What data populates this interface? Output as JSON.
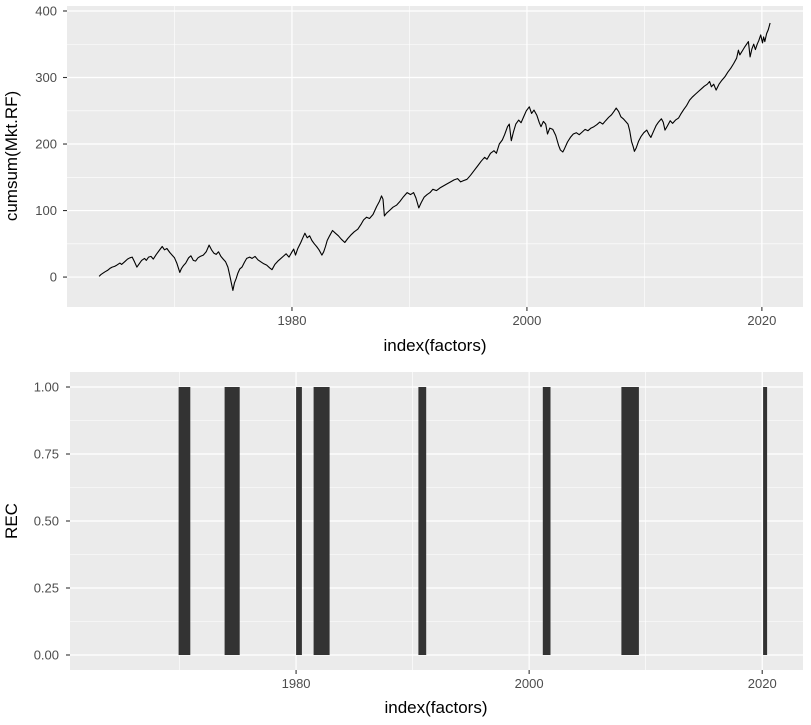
{
  "theme": {
    "figure_bg": "#FFFFFF",
    "panel_bg": "#EBEBEB",
    "grid_color": "#FFFFFF",
    "tick_mark_color": "#333333",
    "tick_label_color": "#4D4D4D",
    "axis_title_color": "#000000",
    "line_color": "#000000",
    "bar_color": "#333333"
  },
  "chart_data": [
    {
      "type": "line",
      "title": "",
      "xlabel": "index(factors)",
      "ylabel": "cumsum(Mkt.RF)",
      "x_ticks": [
        1980,
        2000,
        2020
      ],
      "x_tick_labels": [
        "1980",
        "2000",
        "2020"
      ],
      "x_minor": [
        1970,
        1990,
        2010
      ],
      "y_ticks": [
        0,
        100,
        200,
        300,
        400
      ],
      "y_tick_labels": [
        "0",
        "100",
        "200",
        "300",
        "400"
      ],
      "y_minor": [
        50,
        150,
        250,
        350
      ],
      "xlim": [
        1960.85,
        2023.5
      ],
      "ylim": [
        -45,
        407.5
      ],
      "grid": true,
      "legend": "none",
      "points": [
        [
          1963.58,
          1
        ],
        [
          1963.75,
          4
        ],
        [
          1963.92,
          6
        ],
        [
          1964.1,
          8
        ],
        [
          1964.3,
          10
        ],
        [
          1964.5,
          13
        ],
        [
          1964.7,
          15
        ],
        [
          1964.9,
          16
        ],
        [
          1965.1,
          18
        ],
        [
          1965.35,
          21
        ],
        [
          1965.5,
          19
        ],
        [
          1965.75,
          23
        ],
        [
          1966.0,
          27
        ],
        [
          1966.2,
          29
        ],
        [
          1966.4,
          30
        ],
        [
          1966.6,
          23
        ],
        [
          1966.8,
          15
        ],
        [
          1967.0,
          20
        ],
        [
          1967.2,
          25
        ],
        [
          1967.45,
          28
        ],
        [
          1967.6,
          25
        ],
        [
          1967.8,
          30
        ],
        [
          1968.0,
          31
        ],
        [
          1968.2,
          27
        ],
        [
          1968.45,
          34
        ],
        [
          1968.7,
          40
        ],
        [
          1968.95,
          46
        ],
        [
          1969.15,
          41
        ],
        [
          1969.35,
          43
        ],
        [
          1969.6,
          37
        ],
        [
          1969.8,
          33
        ],
        [
          1970.0,
          29
        ],
        [
          1970.2,
          21
        ],
        [
          1970.45,
          7
        ],
        [
          1970.6,
          13
        ],
        [
          1970.75,
          17
        ],
        [
          1970.95,
          21
        ],
        [
          1971.2,
          29
        ],
        [
          1971.4,
          32
        ],
        [
          1971.6,
          25
        ],
        [
          1971.8,
          24
        ],
        [
          1972.0,
          29
        ],
        [
          1972.2,
          31
        ],
        [
          1972.45,
          33
        ],
        [
          1972.7,
          38
        ],
        [
          1972.95,
          48
        ],
        [
          1973.15,
          41
        ],
        [
          1973.35,
          36
        ],
        [
          1973.55,
          34
        ],
        [
          1973.75,
          38
        ],
        [
          1973.95,
          31
        ],
        [
          1974.15,
          27
        ],
        [
          1974.35,
          23
        ],
        [
          1974.55,
          15
        ],
        [
          1974.7,
          3
        ],
        [
          1974.85,
          -10
        ],
        [
          1974.97,
          -20
        ],
        [
          1975.1,
          -9
        ],
        [
          1975.25,
          -2
        ],
        [
          1975.4,
          6
        ],
        [
          1975.55,
          12
        ],
        [
          1975.75,
          15
        ],
        [
          1975.95,
          22
        ],
        [
          1976.15,
          28
        ],
        [
          1976.4,
          30
        ],
        [
          1976.6,
          28
        ],
        [
          1976.85,
          31
        ],
        [
          1977.1,
          26
        ],
        [
          1977.35,
          23
        ],
        [
          1977.6,
          20
        ],
        [
          1977.85,
          18
        ],
        [
          1978.1,
          14
        ],
        [
          1978.3,
          11
        ],
        [
          1978.55,
          19
        ],
        [
          1978.8,
          24
        ],
        [
          1979.0,
          27
        ],
        [
          1979.25,
          31
        ],
        [
          1979.5,
          35
        ],
        [
          1979.75,
          30
        ],
        [
          1980.0,
          38
        ],
        [
          1980.15,
          42
        ],
        [
          1980.3,
          33
        ],
        [
          1980.5,
          43
        ],
        [
          1980.75,
          52
        ],
        [
          1980.95,
          60
        ],
        [
          1981.1,
          66
        ],
        [
          1981.3,
          59
        ],
        [
          1981.5,
          62
        ],
        [
          1981.7,
          55
        ],
        [
          1981.9,
          50
        ],
        [
          1982.1,
          46
        ],
        [
          1982.3,
          41
        ],
        [
          1982.55,
          33
        ],
        [
          1982.7,
          38
        ],
        [
          1982.85,
          46
        ],
        [
          1983.0,
          55
        ],
        [
          1983.2,
          62
        ],
        [
          1983.45,
          70
        ],
        [
          1983.7,
          66
        ],
        [
          1983.95,
          62
        ],
        [
          1984.2,
          57
        ],
        [
          1984.5,
          52
        ],
        [
          1984.75,
          58
        ],
        [
          1985.0,
          63
        ],
        [
          1985.3,
          68
        ],
        [
          1985.6,
          72
        ],
        [
          1985.9,
          80
        ],
        [
          1986.1,
          86
        ],
        [
          1986.35,
          90
        ],
        [
          1986.6,
          88
        ],
        [
          1986.9,
          94
        ],
        [
          1987.2,
          106
        ],
        [
          1987.45,
          114
        ],
        [
          1987.62,
          122
        ],
        [
          1987.75,
          117
        ],
        [
          1987.87,
          92
        ],
        [
          1988.05,
          96
        ],
        [
          1988.3,
          100
        ],
        [
          1988.6,
          105
        ],
        [
          1988.9,
          108
        ],
        [
          1989.2,
          114
        ],
        [
          1989.5,
          121
        ],
        [
          1989.8,
          127
        ],
        [
          1990.1,
          124
        ],
        [
          1990.35,
          127
        ],
        [
          1990.55,
          119
        ],
        [
          1990.8,
          104
        ],
        [
          1991.0,
          112
        ],
        [
          1991.25,
          120
        ],
        [
          1991.5,
          124
        ],
        [
          1991.75,
          127
        ],
        [
          1992.0,
          132
        ],
        [
          1992.3,
          130
        ],
        [
          1992.6,
          134
        ],
        [
          1992.9,
          137
        ],
        [
          1993.2,
          140
        ],
        [
          1993.5,
          143
        ],
        [
          1993.8,
          146
        ],
        [
          1994.1,
          148
        ],
        [
          1994.35,
          143
        ],
        [
          1994.6,
          145
        ],
        [
          1994.9,
          147
        ],
        [
          1995.2,
          153
        ],
        [
          1995.5,
          160
        ],
        [
          1995.8,
          167
        ],
        [
          1996.1,
          174
        ],
        [
          1996.4,
          180
        ],
        [
          1996.6,
          177
        ],
        [
          1996.9,
          186
        ],
        [
          1997.2,
          190
        ],
        [
          1997.4,
          186
        ],
        [
          1997.65,
          200
        ],
        [
          1997.9,
          206
        ],
        [
          1998.1,
          214
        ],
        [
          1998.35,
          226
        ],
        [
          1998.5,
          230
        ],
        [
          1998.67,
          205
        ],
        [
          1998.85,
          218
        ],
        [
          1999.05,
          230
        ],
        [
          1999.3,
          236
        ],
        [
          1999.5,
          232
        ],
        [
          1999.7,
          240
        ],
        [
          1999.95,
          250
        ],
        [
          2000.2,
          256
        ],
        [
          2000.4,
          246
        ],
        [
          2000.6,
          251
        ],
        [
          2000.85,
          243
        ],
        [
          2001.05,
          232
        ],
        [
          2001.2,
          226
        ],
        [
          2001.4,
          234
        ],
        [
          2001.6,
          230
        ],
        [
          2001.75,
          215
        ],
        [
          2001.95,
          224
        ],
        [
          2002.2,
          222
        ],
        [
          2002.45,
          213
        ],
        [
          2002.7,
          198
        ],
        [
          2002.85,
          191
        ],
        [
          2003.05,
          188
        ],
        [
          2003.2,
          193
        ],
        [
          2003.45,
          203
        ],
        [
          2003.7,
          210
        ],
        [
          2003.95,
          215
        ],
        [
          2004.2,
          217
        ],
        [
          2004.45,
          214
        ],
        [
          2004.7,
          218
        ],
        [
          2004.95,
          222
        ],
        [
          2005.2,
          220
        ],
        [
          2005.45,
          224
        ],
        [
          2005.7,
          226
        ],
        [
          2005.95,
          229
        ],
        [
          2006.2,
          233
        ],
        [
          2006.45,
          230
        ],
        [
          2006.7,
          235
        ],
        [
          2006.95,
          240
        ],
        [
          2007.2,
          244
        ],
        [
          2007.45,
          250
        ],
        [
          2007.6,
          254
        ],
        [
          2007.8,
          249
        ],
        [
          2008.0,
          241
        ],
        [
          2008.2,
          238
        ],
        [
          2008.4,
          234
        ],
        [
          2008.6,
          230
        ],
        [
          2008.75,
          220
        ],
        [
          2008.9,
          204
        ],
        [
          2009.05,
          196
        ],
        [
          2009.15,
          189
        ],
        [
          2009.3,
          194
        ],
        [
          2009.5,
          204
        ],
        [
          2009.7,
          211
        ],
        [
          2009.95,
          217
        ],
        [
          2010.2,
          221
        ],
        [
          2010.4,
          214
        ],
        [
          2010.55,
          210
        ],
        [
          2010.8,
          220
        ],
        [
          2011.0,
          228
        ],
        [
          2011.2,
          233
        ],
        [
          2011.45,
          238
        ],
        [
          2011.6,
          233
        ],
        [
          2011.75,
          221
        ],
        [
          2011.95,
          227
        ],
        [
          2012.2,
          235
        ],
        [
          2012.4,
          231
        ],
        [
          2012.65,
          236
        ],
        [
          2012.9,
          239
        ],
        [
          2013.1,
          245
        ],
        [
          2013.35,
          252
        ],
        [
          2013.6,
          258
        ],
        [
          2013.85,
          266
        ],
        [
          2014.1,
          271
        ],
        [
          2014.35,
          275
        ],
        [
          2014.6,
          279
        ],
        [
          2014.85,
          283
        ],
        [
          2015.1,
          287
        ],
        [
          2015.35,
          290
        ],
        [
          2015.55,
          294
        ],
        [
          2015.7,
          286
        ],
        [
          2015.9,
          290
        ],
        [
          2016.1,
          281
        ],
        [
          2016.35,
          290
        ],
        [
          2016.6,
          296
        ],
        [
          2016.85,
          301
        ],
        [
          2017.1,
          308
        ],
        [
          2017.35,
          314
        ],
        [
          2017.6,
          321
        ],
        [
          2017.85,
          329
        ],
        [
          2018.0,
          341
        ],
        [
          2018.12,
          334
        ],
        [
          2018.3,
          339
        ],
        [
          2018.5,
          345
        ],
        [
          2018.7,
          350
        ],
        [
          2018.85,
          354
        ],
        [
          2019.0,
          331
        ],
        [
          2019.15,
          343
        ],
        [
          2019.3,
          350
        ],
        [
          2019.45,
          342
        ],
        [
          2019.6,
          350
        ],
        [
          2019.75,
          356
        ],
        [
          2019.9,
          364
        ],
        [
          2020.05,
          352
        ],
        [
          2020.15,
          361
        ],
        [
          2020.25,
          354
        ],
        [
          2020.4,
          366
        ],
        [
          2020.55,
          372
        ],
        [
          2020.7,
          382
        ]
      ]
    },
    {
      "type": "bar",
      "title": "",
      "xlabel": "index(factors)",
      "ylabel": "REC",
      "x_ticks": [
        1980,
        2000,
        2020
      ],
      "x_tick_labels": [
        "1980",
        "2000",
        "2020"
      ],
      "x_minor": [
        1970,
        1990,
        2010
      ],
      "y_ticks": [
        0,
        0.25,
        0.5,
        0.75,
        1
      ],
      "y_tick_labels": [
        "0.00",
        "0.25",
        "0.50",
        "0.75",
        "1.00"
      ],
      "y_minor": [
        0.125,
        0.375,
        0.625,
        0.875
      ],
      "xlim": [
        1960.6,
        2023.5
      ],
      "ylim": [
        -0.056,
        1.056
      ],
      "grid": true,
      "legend": "none",
      "bar_value": 1,
      "recessions": [
        [
          1969.92,
          1970.92
        ],
        [
          1973.87,
          1975.17
        ],
        [
          1980.0,
          1980.5
        ],
        [
          1981.5,
          1982.87
        ],
        [
          1990.5,
          1991.17
        ],
        [
          2001.17,
          2001.83
        ],
        [
          2007.92,
          2009.42
        ],
        [
          2020.08,
          2020.42
        ]
      ]
    }
  ]
}
